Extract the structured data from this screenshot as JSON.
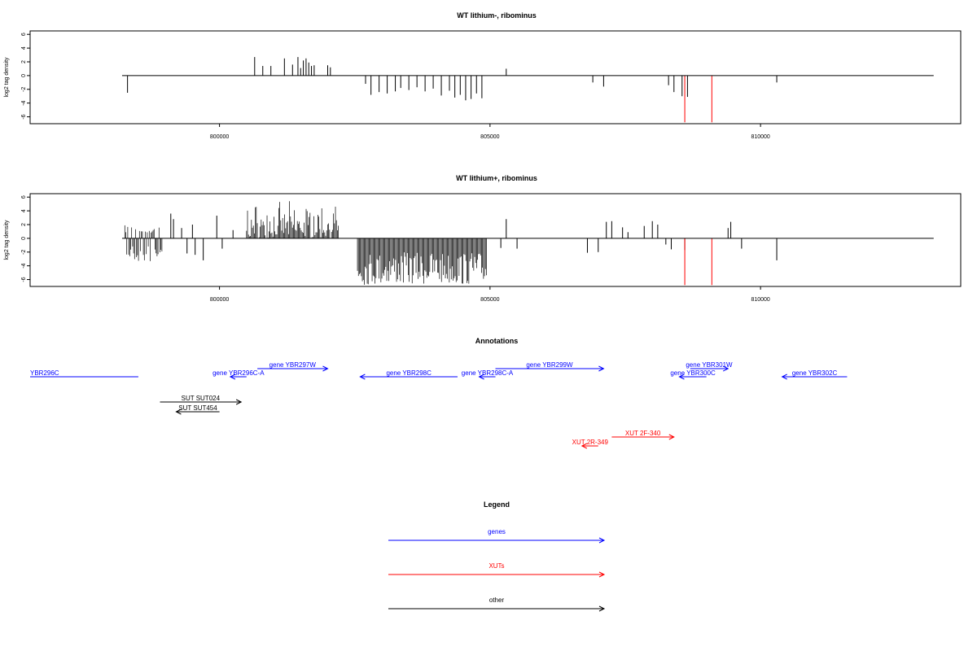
{
  "chart_data": [
    {
      "type": "bar",
      "title": "WT lithium-, ribominus",
      "xlabel": "",
      "ylabel": "log2 tag density",
      "xlim": [
        796500,
        813700
      ],
      "ylim": [
        -7,
        6.5
      ],
      "yticks": [
        "6",
        "4",
        "2",
        "0",
        "-2",
        "-4",
        "-6"
      ],
      "xticks": [
        "800000",
        "805000",
        "810000"
      ],
      "baseline_extent": [
        798200,
        813200
      ],
      "series": [
        {
          "color": "#000000",
          "x": [
            798300,
            800650,
            800800,
            800950,
            801200,
            801350,
            801450,
            801500,
            801550,
            801600,
            801650,
            801700,
            801750,
            802000,
            802050,
            802700,
            802800,
            802950,
            803100,
            803250,
            803350,
            803500,
            803650,
            803800,
            803950,
            804100,
            804250,
            804350,
            804450,
            804550,
            804650,
            804750,
            804850,
            805300,
            806900,
            807100,
            808300,
            808400,
            808550,
            808650,
            810300
          ],
          "values": [
            -2.5,
            2.7,
            1.4,
            1.4,
            2.5,
            1.6,
            2.7,
            1.1,
            2.2,
            2.5,
            1.9,
            1.4,
            1.5,
            1.5,
            1.2,
            -1.2,
            -2.8,
            -2.4,
            -2.6,
            -2.3,
            -1.8,
            -2.1,
            -1.7,
            -2.3,
            -1.9,
            -2.9,
            -2.2,
            -3.2,
            -2.8,
            -3.6,
            -3.4,
            -2.6,
            -3.3,
            1.0,
            -1.0,
            -1.6,
            -1.4,
            -2.4,
            -3.0,
            -3.1,
            -1.0
          ]
        },
        {
          "color": "#ff0000",
          "x": [
            808600,
            809100
          ],
          "values": [
            -6.8,
            -6.8
          ]
        }
      ]
    },
    {
      "type": "bar",
      "title": "WT lithium+, ribominus",
      "xlabel": "",
      "ylabel": "log2 tag density",
      "xlim": [
        796500,
        813700
      ],
      "ylim": [
        -7,
        6.5
      ],
      "yticks": [
        "6",
        "4",
        "2",
        "0",
        "-2",
        "-4",
        "-6"
      ],
      "xticks": [
        "800000",
        "805000",
        "810000"
      ],
      "baseline_extent": [
        798200,
        813200
      ],
      "dense_regions": [
        {
          "from": 798250,
          "to": 798950,
          "min": -3.5,
          "max": 2.0
        },
        {
          "from": 800500,
          "to": 802200,
          "min": -0.6,
          "max": 5.5
        },
        {
          "from": 802550,
          "to": 804950,
          "min": -6.8,
          "max": 0.8
        }
      ],
      "series": [
        {
          "color": "#000000",
          "x": [
            799100,
            799150,
            799300,
            799400,
            799500,
            799550,
            799700,
            799950,
            800050,
            800250,
            805200,
            805300,
            805500,
            806800,
            807000,
            807150,
            807250,
            807450,
            807550,
            807850,
            808000,
            808100,
            808250,
            808350,
            808600,
            809400,
            809450,
            809650,
            810300
          ],
          "values": [
            3.6,
            2.8,
            1.5,
            -2.2,
            2.0,
            -2.4,
            -3.2,
            3.3,
            -1.5,
            1.2,
            -1.4,
            2.8,
            -1.5,
            -2.1,
            -2.0,
            2.4,
            2.5,
            1.6,
            0.9,
            1.8,
            2.5,
            2.0,
            -0.9,
            -1.6,
            -1.7,
            1.5,
            2.4,
            -1.5,
            -3.2
          ]
        },
        {
          "color": "#ff0000",
          "x": [
            808600,
            809100
          ],
          "values": [
            -6.8,
            -6.8
          ]
        }
      ]
    }
  ],
  "annotations": {
    "title": "Annotations",
    "items": [
      {
        "label": "YBR296C",
        "from": 796500,
        "to": 798500,
        "row": 1,
        "color": "#0000ff"
      },
      {
        "label": "gene YBR296C-A",
        "from": 800500,
        "to": 800200,
        "row": 1,
        "color": "#0000ff"
      },
      {
        "label": "gene YBR297W",
        "from": 800700,
        "to": 802000,
        "row": 0,
        "color": "#0000ff"
      },
      {
        "label": "gene YBR298C",
        "from": 804400,
        "to": 802600,
        "row": 1,
        "color": "#0000ff"
      },
      {
        "label": "gene YBR298C-A",
        "from": 805100,
        "to": 804800,
        "row": 1,
        "color": "#0000ff"
      },
      {
        "label": "gene YBR299W",
        "from": 805100,
        "to": 807100,
        "row": 0,
        "color": "#0000ff"
      },
      {
        "label": "gene YBR301W",
        "from": 808700,
        "to": 809400,
        "row": 0,
        "color": "#0000ff"
      },
      {
        "label": "gene YBR300C",
        "from": 809000,
        "to": 808500,
        "row": 1,
        "color": "#0000ff"
      },
      {
        "label": "gene YBR302C",
        "from": 811600,
        "to": 810400,
        "row": 1,
        "color": "#0000ff"
      },
      {
        "label": "SUT SUT024",
        "from": 798900,
        "to": 800400,
        "row": 3,
        "color": "#000000"
      },
      {
        "label": "SUT SUT454",
        "from": 800000,
        "to": 799200,
        "row": 4,
        "color": "#000000"
      },
      {
        "label": "XUT 2F-340",
        "from": 807250,
        "to": 808400,
        "row": 6,
        "color": "#ff0000"
      },
      {
        "label": "XUT 2R-349",
        "from": 807000,
        "to": 806700,
        "row": 7,
        "color": "#ff0000"
      }
    ]
  },
  "legend": {
    "title": "Legend",
    "items": [
      {
        "label": "genes",
        "color": "#0000ff"
      },
      {
        "label": "XUTs",
        "color": "#ff0000"
      },
      {
        "label": "other",
        "color": "#000000"
      }
    ]
  }
}
